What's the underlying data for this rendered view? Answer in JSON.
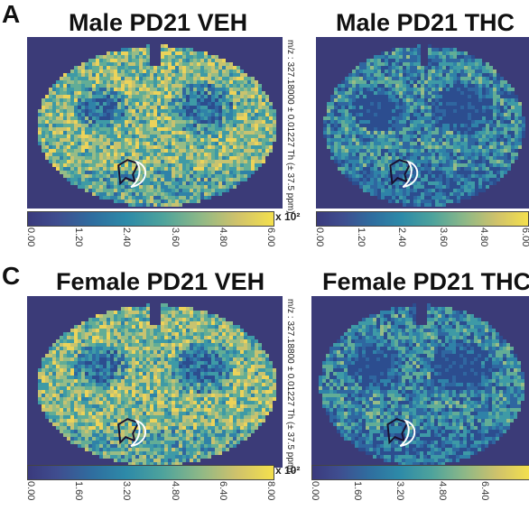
{
  "panel_letters": {
    "a": "A",
    "c": "C"
  },
  "titles": {
    "male_veh": "Male PD21 VEH",
    "male_thc": "Male PD21 THC",
    "female_veh": "Female PD21 VEH",
    "female_thc": "Female PD21 THC"
  },
  "mz_labels": {
    "top": "m/z : 327.18000 ± 0.01227 Th (± 37.5 ppm)",
    "bottom": "m/z : 327.18800 ± 0.01227 Th (± 37.5 ppm)"
  },
  "scale_label": "x 10²",
  "colorbars": {
    "male_veh": [
      "0.00",
      "1.20",
      "2.40",
      "3.60",
      "4.80",
      "6.00"
    ],
    "male_thc": [
      "0.00",
      "1.20",
      "2.40",
      "3.60",
      "4.80",
      "6.00"
    ],
    "female_veh": [
      "0.00",
      "1.60",
      "3.20",
      "4.80",
      "6.40",
      "8.00"
    ],
    "female_thc": [
      "0.00",
      "1.60",
      "3.20",
      "4.80",
      "6.40"
    ]
  },
  "colors": {
    "background": "#3b3b78",
    "low": "#2f5f9a",
    "mid": "#4aa3a0",
    "high": "#f2d54a"
  }
}
